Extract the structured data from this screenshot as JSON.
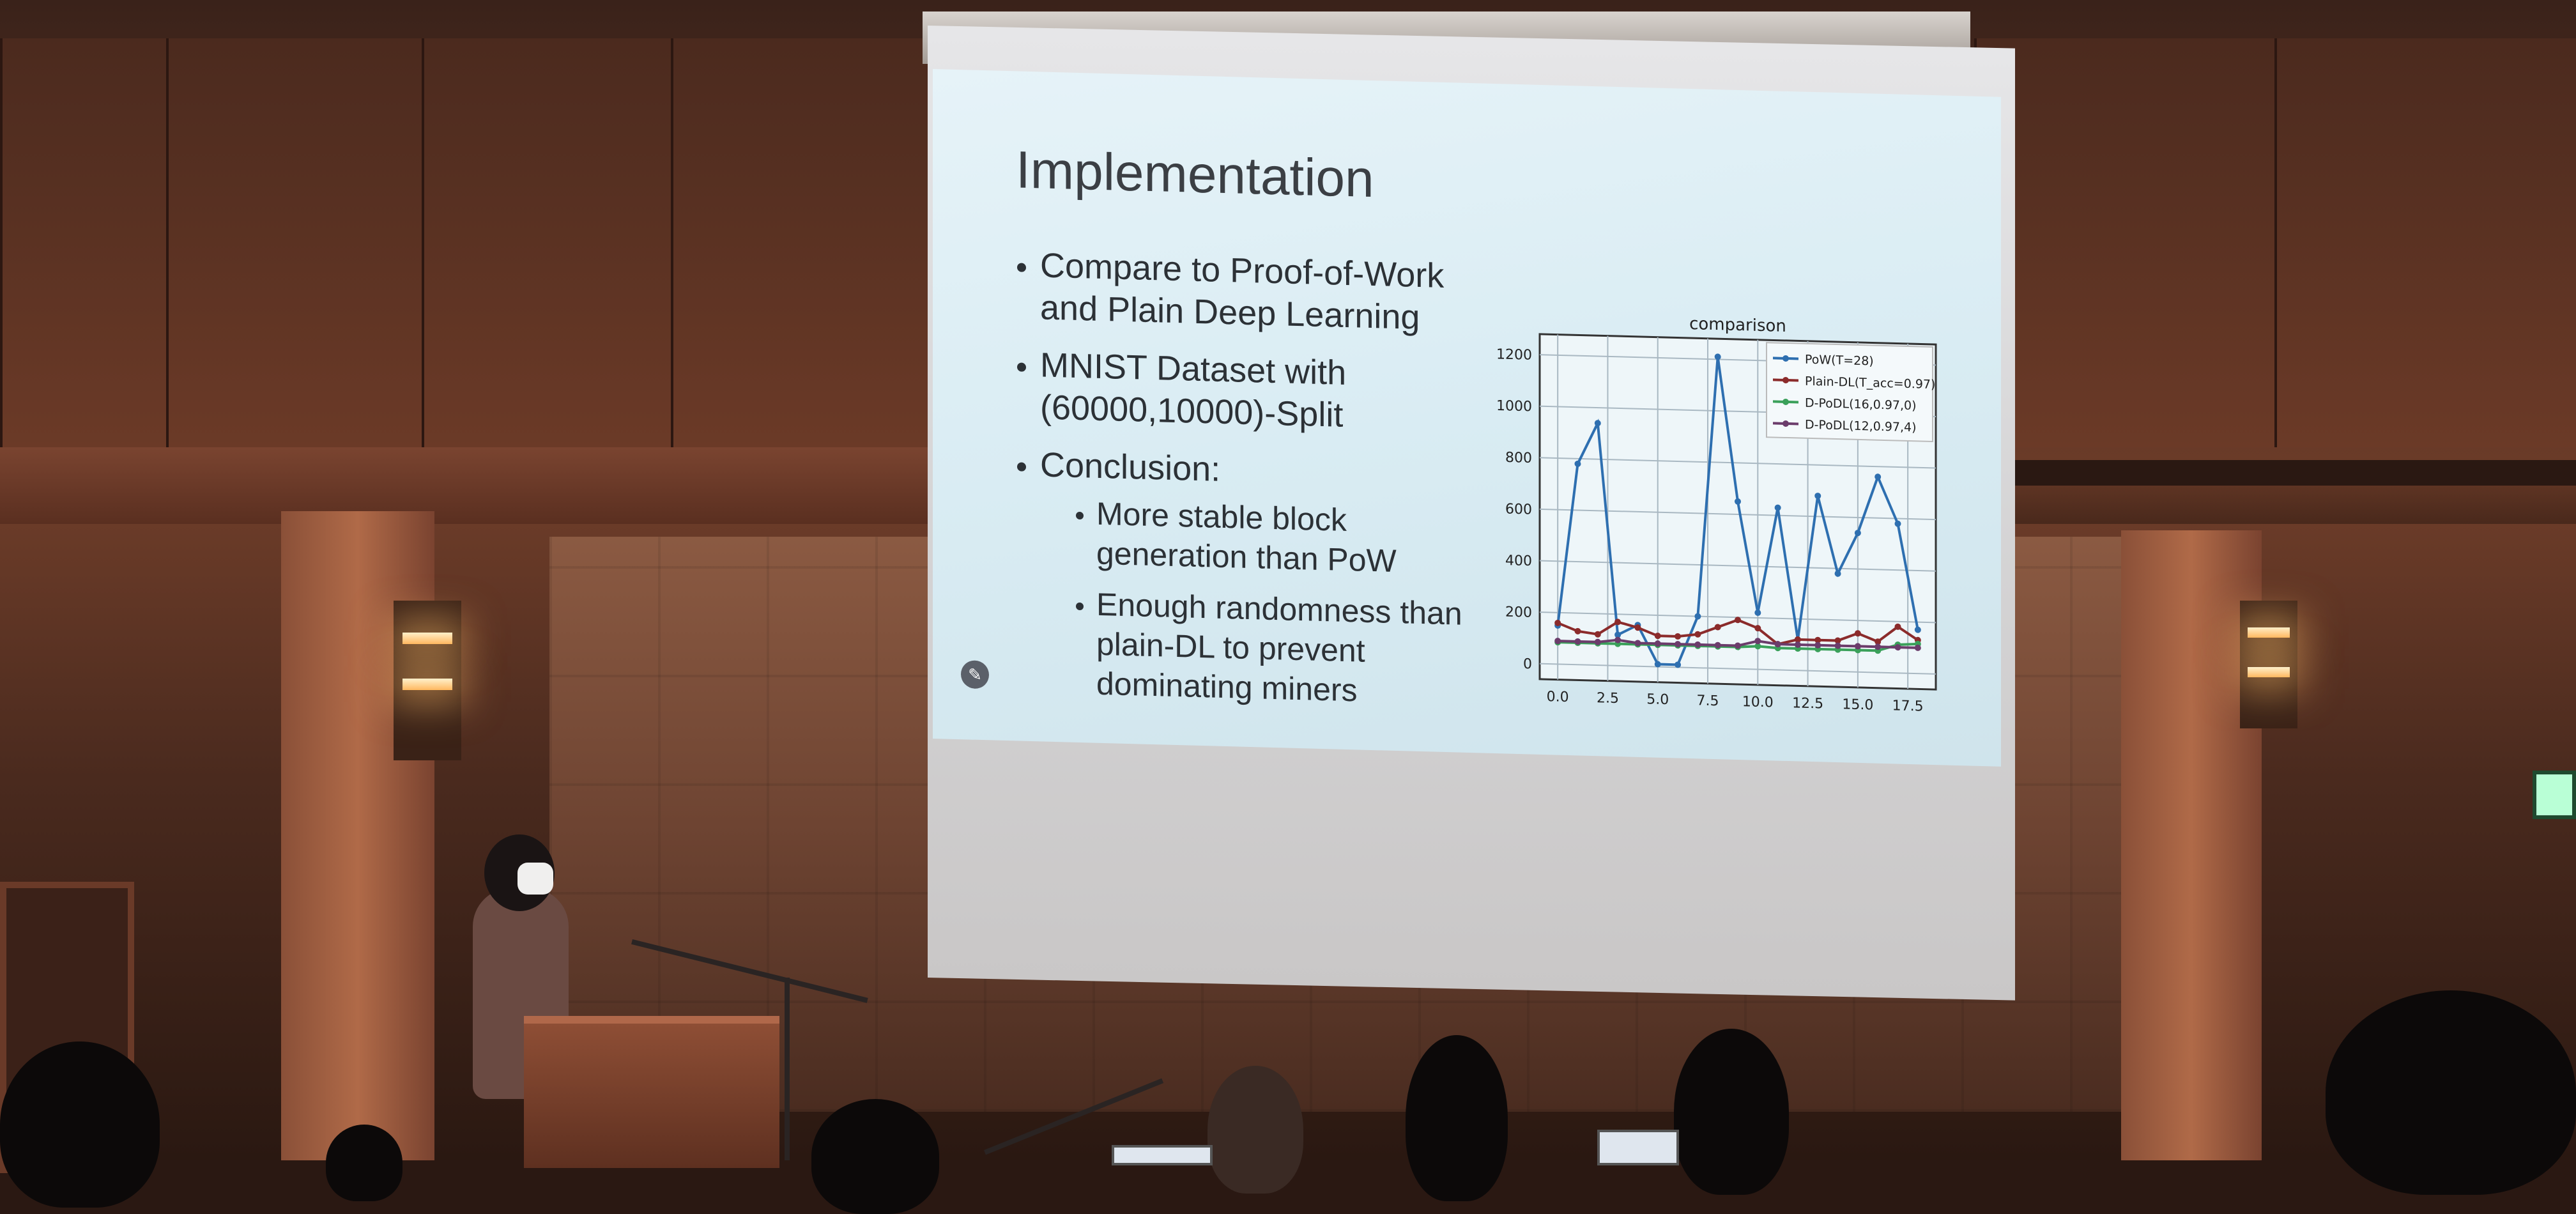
{
  "slide": {
    "title": "Implementation",
    "bullets": [
      "Compare to Proof-of-Work",
      "and Plain Deep Learning",
      "MNIST Dataset with",
      "(60000,10000)-Split",
      "Conclusion:"
    ],
    "subbullets": [
      "More stable block",
      "generation than PoW",
      "Enough randomness than",
      "plain-DL to prevent",
      "dominating miners"
    ]
  },
  "chart_data": {
    "type": "line",
    "title": "comparison",
    "xlim": [
      -0.9,
      18.9
    ],
    "ylim": [
      -60,
      1280
    ],
    "xticks": [
      "0.0",
      "2.5",
      "5.0",
      "7.5",
      "10.0",
      "12.5",
      "15.0",
      "17.5"
    ],
    "yticks": [
      "0",
      "200",
      "400",
      "600",
      "800",
      "1000",
      "1200"
    ],
    "grid": true,
    "legend_position": "top-right",
    "x": [
      0,
      1,
      2,
      3,
      4,
      5,
      6,
      7,
      8,
      9,
      10,
      11,
      12,
      13,
      14,
      15,
      16,
      17,
      18
    ],
    "series": [
      {
        "name": "PoW(T=28)",
        "color": "#2e6fb0",
        "values": [
          150,
          780,
          940,
          120,
          160,
          10,
          10,
          200,
          1210,
          650,
          220,
          630,
          120,
          680,
          380,
          540,
          760,
          580,
          170
        ]
      },
      {
        "name": "Plain-DL(T_acc=0.97)",
        "color": "#8b2b2b",
        "values": [
          160,
          130,
          120,
          170,
          150,
          120,
          120,
          130,
          160,
          190,
          160,
          100,
          120,
          120,
          120,
          150,
          120,
          180,
          130
        ]
      },
      {
        "name": "D-PoDL(16,0.97,0)",
        "color": "#3aa05a",
        "values": [
          85,
          85,
          85,
          85,
          85,
          85,
          85,
          85,
          85,
          85,
          90,
          85,
          85,
          85,
          85,
          85,
          85,
          110,
          115
        ]
      },
      {
        "name": "D-PoDL(12,0.97,4)",
        "color": "#6b3c6b",
        "values": [
          90,
          90,
          90,
          100,
          90,
          90,
          90,
          90,
          90,
          90,
          110,
          100,
          100,
          100,
          100,
          100,
          100,
          100,
          100
        ]
      }
    ]
  }
}
